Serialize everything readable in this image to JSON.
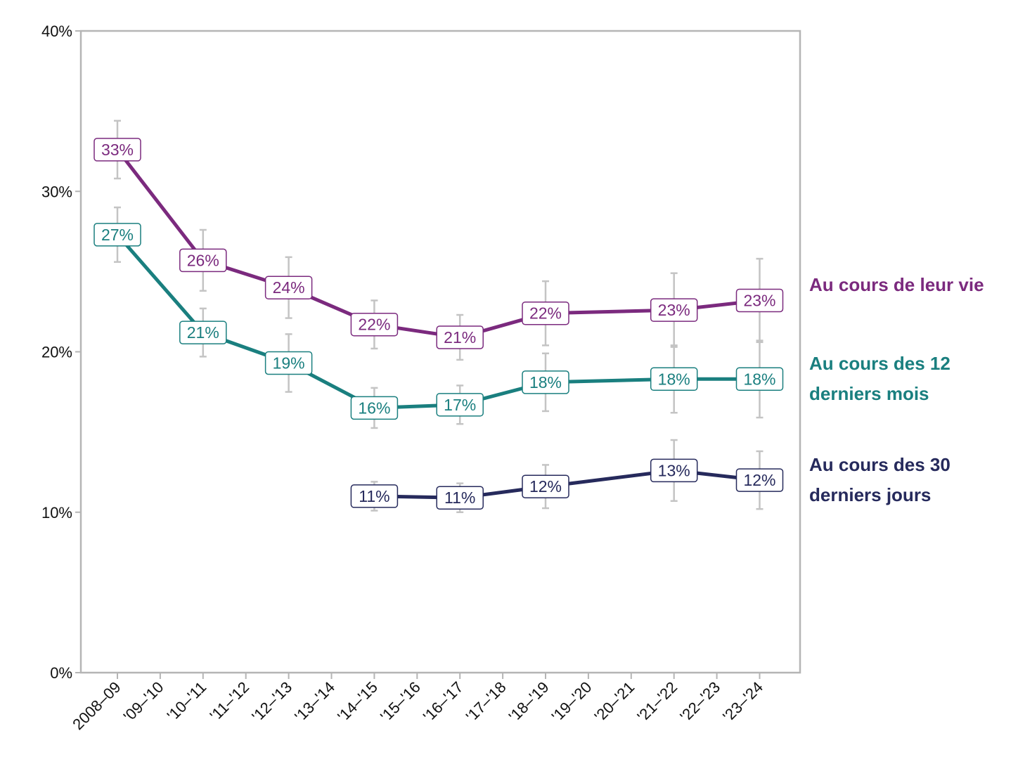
{
  "chart_data": {
    "type": "line",
    "categories": [
      "2008–09",
      "'09–'10",
      "'10–'11",
      "'11–'12",
      "'12–'13",
      "'13–'14",
      "'14–'15",
      "'15–'16",
      "'16–'17",
      "'17–'18",
      "'18–'19",
      "'19–'20",
      "'20–'21",
      "'21–'22",
      "'22–'23",
      "'23–'24"
    ],
    "ylim": [
      0,
      40
    ],
    "yticks": [
      {
        "value": 0,
        "label": "0%"
      },
      {
        "value": 10,
        "label": "10%"
      },
      {
        "value": 20,
        "label": "20%"
      },
      {
        "value": 30,
        "label": "30%"
      },
      {
        "value": 40,
        "label": "40%"
      }
    ],
    "grid": false,
    "series": [
      {
        "name": "Au cours de leur vie",
        "color": "#7b2a7e",
        "x": [
          "2008–09",
          "'10–'11",
          "'12–'13",
          "'14–'15",
          "'16–'17",
          "'18–'19",
          "'21–'22",
          "'23–'24"
        ],
        "values": [
          32.6,
          25.7,
          24.0,
          21.7,
          20.9,
          22.4,
          22.6,
          23.2
        ],
        "value_labels": [
          "33%",
          "26%",
          "24%",
          "22%",
          "21%",
          "22%",
          "23%",
          "23%"
        ],
        "errors": [
          1.8,
          1.9,
          1.9,
          1.5,
          1.4,
          2.0,
          2.3,
          2.6
        ]
      },
      {
        "name": "Au cours des 12 derniers mois",
        "color": "#1a7f7f",
        "x": [
          "2008–09",
          "'10–'11",
          "'12–'13",
          "'14–'15",
          "'16–'17",
          "'18–'19",
          "'21–'22",
          "'23–'24"
        ],
        "values": [
          27.3,
          21.2,
          19.3,
          16.5,
          16.7,
          18.1,
          18.3,
          18.3
        ],
        "value_labels": [
          "27%",
          "21%",
          "19%",
          "16%",
          "17%",
          "18%",
          "18%",
          "18%"
        ],
        "errors": [
          1.7,
          1.5,
          1.8,
          1.25,
          1.2,
          1.8,
          2.1,
          2.4
        ]
      },
      {
        "name": "Au cours des 30 derniers jours",
        "color": "#262a5c",
        "x": [
          "'14–'15",
          "'16–'17",
          "'18–'19",
          "'21–'22",
          "'23–'24"
        ],
        "values": [
          11.0,
          10.9,
          11.6,
          12.6,
          12.0
        ],
        "value_labels": [
          "11%",
          "11%",
          "12%",
          "13%",
          "12%"
        ],
        "errors": [
          0.9,
          0.9,
          1.35,
          1.9,
          1.8
        ]
      }
    ]
  }
}
